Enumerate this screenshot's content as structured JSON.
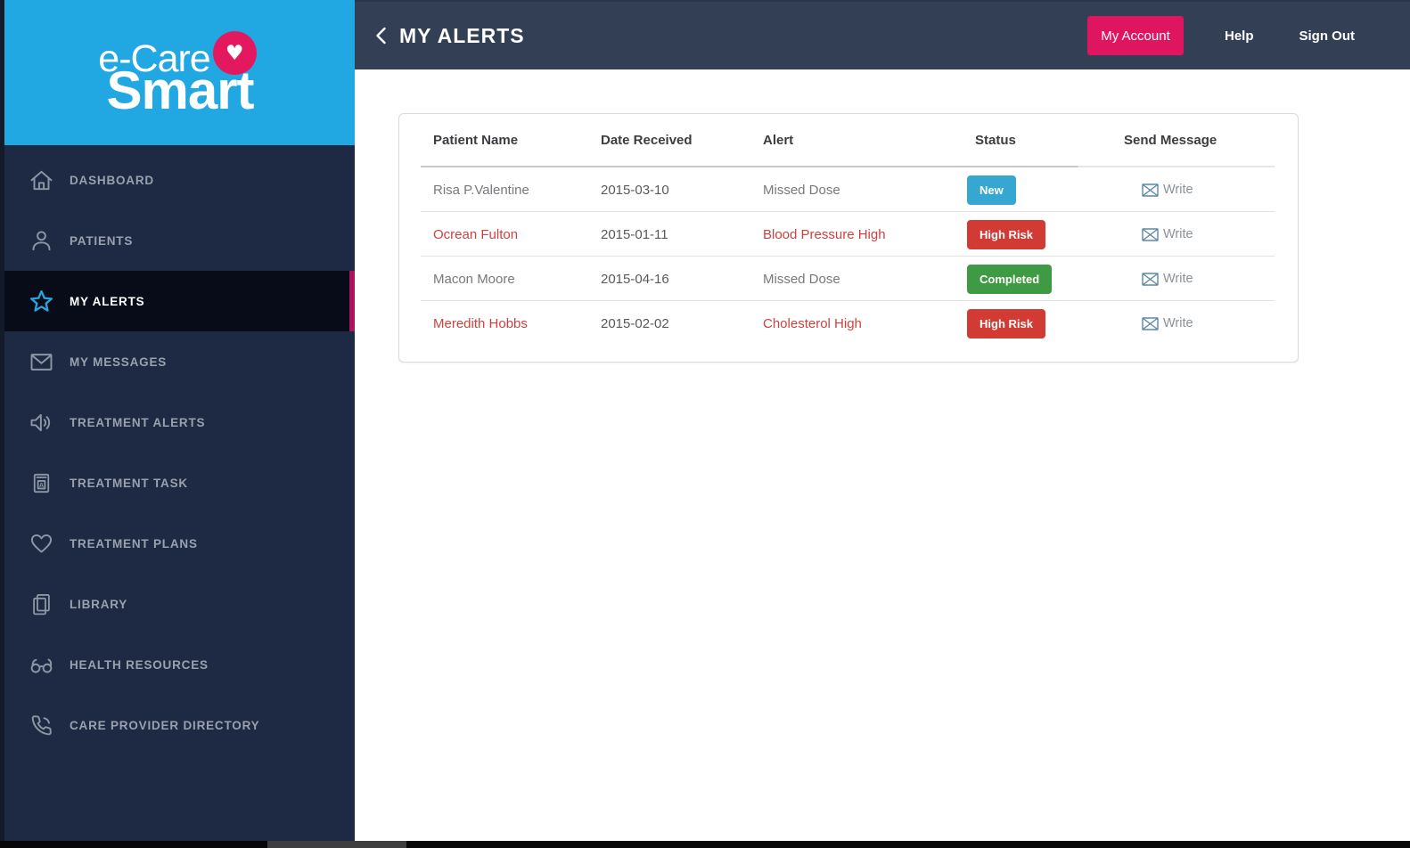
{
  "brand": {
    "line1": "e-Care",
    "line2": "Smart",
    "heart_glyph": "♥"
  },
  "header": {
    "title": "MY ALERTS",
    "my_account_label": "My Account",
    "help_label": "Help",
    "sign_out_label": "Sign Out"
  },
  "sidebar": {
    "items": [
      {
        "label": "DASHBOARD",
        "icon": "home-icon",
        "active": false
      },
      {
        "label": "PATIENTS",
        "icon": "user-icon",
        "active": false
      },
      {
        "label": "MY ALERTS",
        "icon": "star-icon",
        "active": true
      },
      {
        "label": "MY MESSAGES",
        "icon": "mail-icon",
        "active": false
      },
      {
        "label": "TREATMENT ALERTS",
        "icon": "megaphone-icon",
        "active": false
      },
      {
        "label": "TREATMENT TASK",
        "icon": "book-icon",
        "active": false
      },
      {
        "label": "TREATMENT PLANS",
        "icon": "heart-icon",
        "active": false
      },
      {
        "label": "LIBRARY",
        "icon": "library-icon",
        "active": false
      },
      {
        "label": "HEALTH RESOURCES",
        "icon": "glasses-icon",
        "active": false
      },
      {
        "label": "CARE PROVIDER DIRECTORY",
        "icon": "phone-icon",
        "active": false
      }
    ]
  },
  "table": {
    "columns": [
      "Patient Name",
      "Date Received",
      "Alert",
      "Status",
      "Send Message"
    ],
    "rows": [
      {
        "patient": "Risa P.Valentine",
        "date": "2015-03-10",
        "alert": "Missed Dose",
        "status": "New",
        "status_color": "#36a7d0",
        "flagged": false,
        "write_label": "Write"
      },
      {
        "patient": "Ocrean Fulton",
        "date": "2015-01-11",
        "alert": "Blood Pressure High",
        "status": "High Risk",
        "status_color": "#d13b34",
        "flagged": true,
        "write_label": "Write"
      },
      {
        "patient": "Macon Moore",
        "date": "2015-04-16",
        "alert": "Missed Dose",
        "status": "Completed",
        "status_color": "#3f9b43",
        "flagged": false,
        "write_label": "Write"
      },
      {
        "patient": "Meredith Hobbs",
        "date": "2015-02-02",
        "alert": "Cholesterol High",
        "status": "High Risk",
        "status_color": "#d13b34",
        "flagged": true,
        "write_label": "Write"
      }
    ]
  },
  "colors": {
    "sidebar_bg": "#1e2a43",
    "sidebar_active_bg": "#070c18",
    "header_bg": "#333f55",
    "brand_cyan": "#21a7e2",
    "brand_pink": "#e01560",
    "active_strip": "#aa155e",
    "flagged_text": "#cd423e",
    "badge_new": "#36a7d0",
    "badge_high_risk": "#d13b34",
    "badge_completed": "#3f9b43"
  }
}
